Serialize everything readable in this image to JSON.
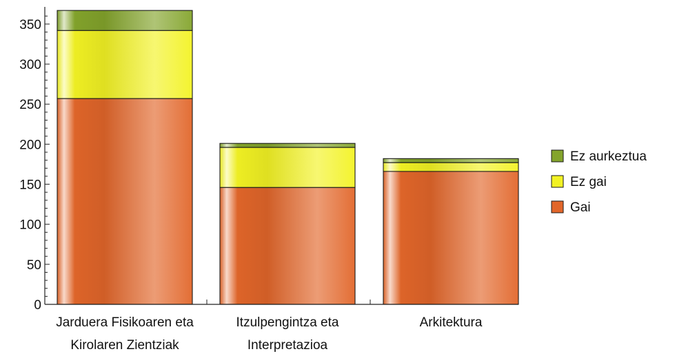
{
  "chart_data": {
    "type": "bar",
    "stacked": true,
    "categories": [
      [
        "Jarduera Fisikoaren eta",
        "Kirolaren Zientziak"
      ],
      [
        "Itzulpengintza eta",
        "Interpretazioa"
      ],
      [
        "Arkitektura"
      ]
    ],
    "series": [
      {
        "name": "Gai",
        "values": [
          257,
          146,
          166
        ],
        "color": "#e2662a"
      },
      {
        "name": "Ez gai",
        "values": [
          85,
          50,
          11
        ],
        "color": "#f2f224"
      },
      {
        "name": "Ez aurkeztua",
        "values": [
          25,
          5,
          5
        ],
        "color": "#84a42c"
      }
    ],
    "ylim": [
      0,
      368
    ],
    "yticks": [
      0,
      50,
      100,
      150,
      200,
      250,
      300,
      350
    ],
    "legend_order": [
      "Ez aurkeztua",
      "Ez gai",
      "Gai"
    ],
    "legend_position": "right",
    "grid": false
  }
}
